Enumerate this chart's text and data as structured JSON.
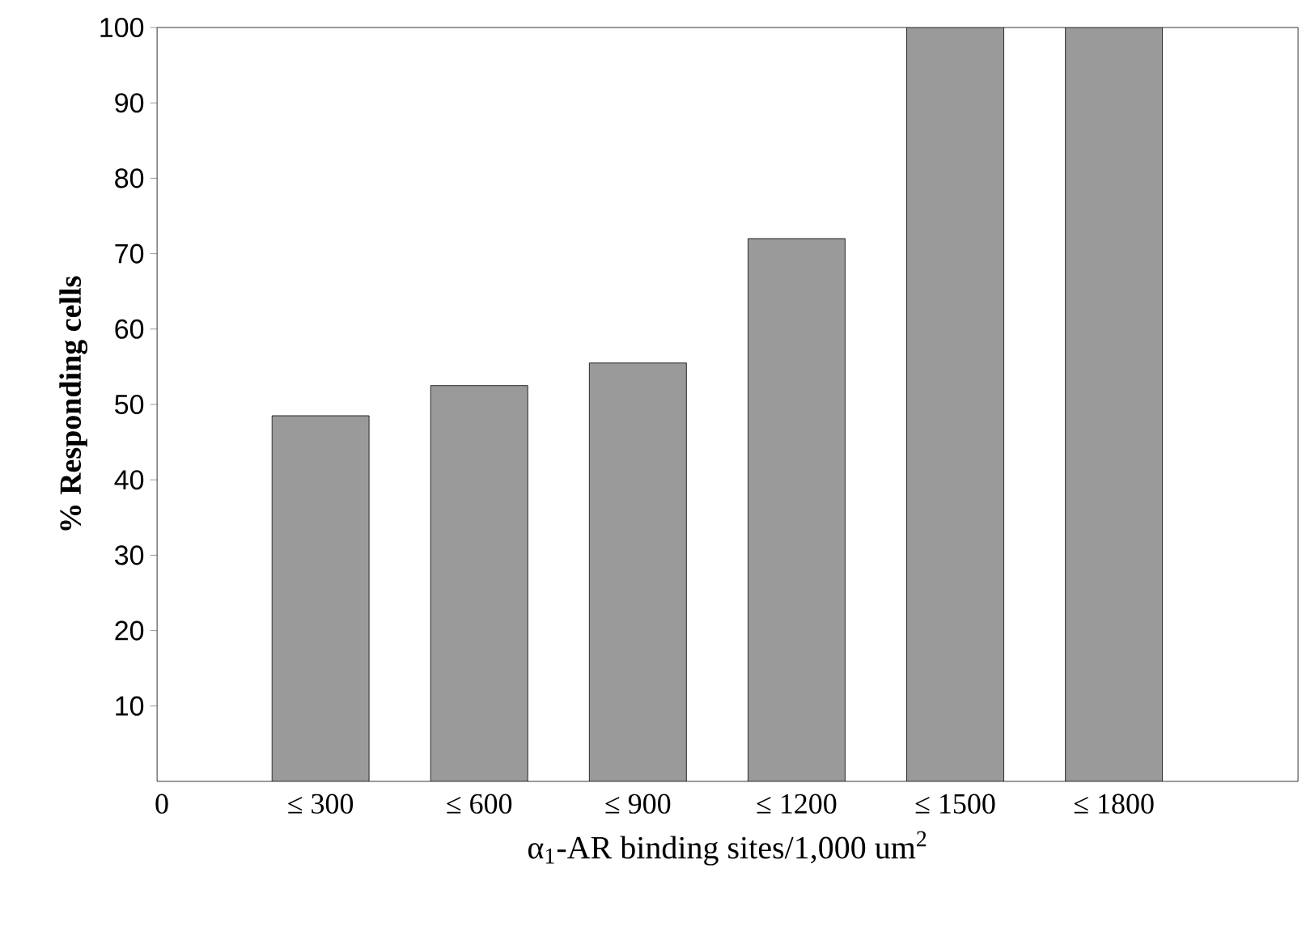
{
  "chart_data": {
    "type": "bar",
    "xlabel": "α$_{1}$-AR binding sites/1,000 um$^{2}$",
    "ylabel": "% Responding cells",
    "categories": [
      "0",
      "≤ 300",
      "≤ 600",
      "≤ 900",
      "≤ 1200",
      "≤ 1500",
      "≤ 1800"
    ],
    "values": [
      null,
      48.5,
      52.5,
      55.5,
      72,
      100,
      100
    ],
    "color": "#9a9a9a",
    "ylim": [
      0,
      100
    ],
    "yticks": [
      10,
      20,
      30,
      40,
      50,
      60,
      70,
      80,
      90,
      100
    ],
    "grid": false
  }
}
